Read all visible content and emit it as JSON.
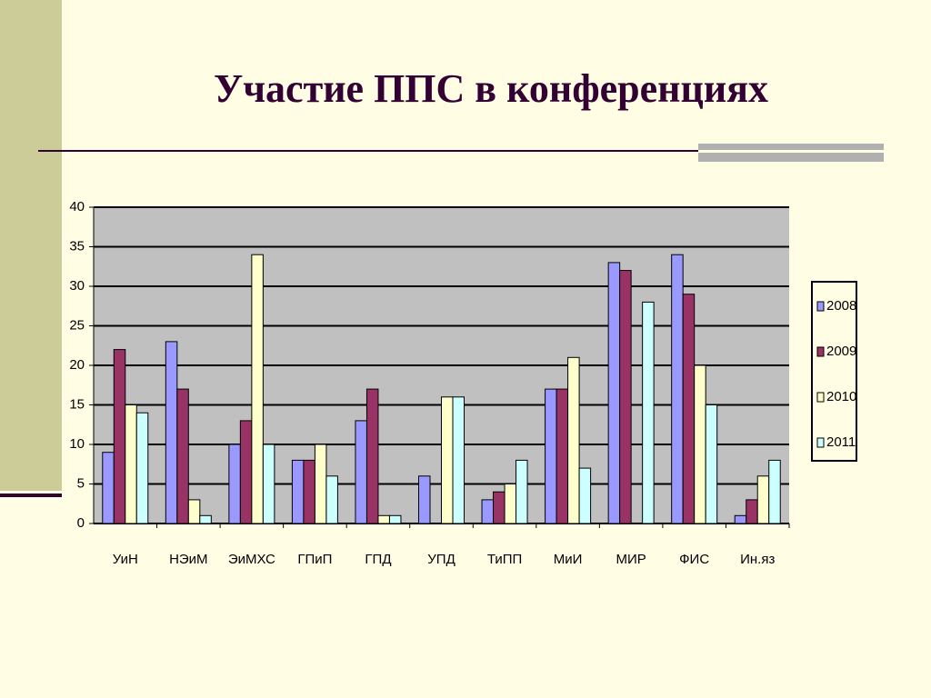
{
  "chart_data": {
    "type": "bar",
    "title": "Участие ППС в конференциях",
    "categories": [
      "УиН",
      "НЭиМ",
      "ЭиМХС",
      "ГПиП",
      "ГПД",
      "УПД",
      "ТиПП",
      "МиИ",
      "МИР",
      "ФИС",
      "Ин.яз"
    ],
    "series": [
      {
        "name": "2008",
        "color": "#9999ff",
        "values": [
          9,
          23,
          10,
          8,
          13,
          6,
          3,
          17,
          33,
          34,
          1
        ]
      },
      {
        "name": "2009",
        "color": "#993366",
        "values": [
          22,
          17,
          13,
          8,
          17,
          0,
          4,
          17,
          32,
          29,
          3
        ]
      },
      {
        "name": "2010",
        "color": "#ffffcc",
        "values": [
          15,
          3,
          34,
          10,
          1,
          16,
          5,
          21,
          0,
          20,
          6
        ]
      },
      {
        "name": "2011",
        "color": "#ccffff",
        "values": [
          14,
          1,
          10,
          6,
          1,
          16,
          8,
          7,
          28,
          15,
          8
        ]
      }
    ],
    "ylim": [
      0,
      40
    ],
    "yticks": [
      0,
      5,
      10,
      15,
      20,
      25,
      30,
      35,
      40
    ],
    "grid": true,
    "legend": "right"
  }
}
